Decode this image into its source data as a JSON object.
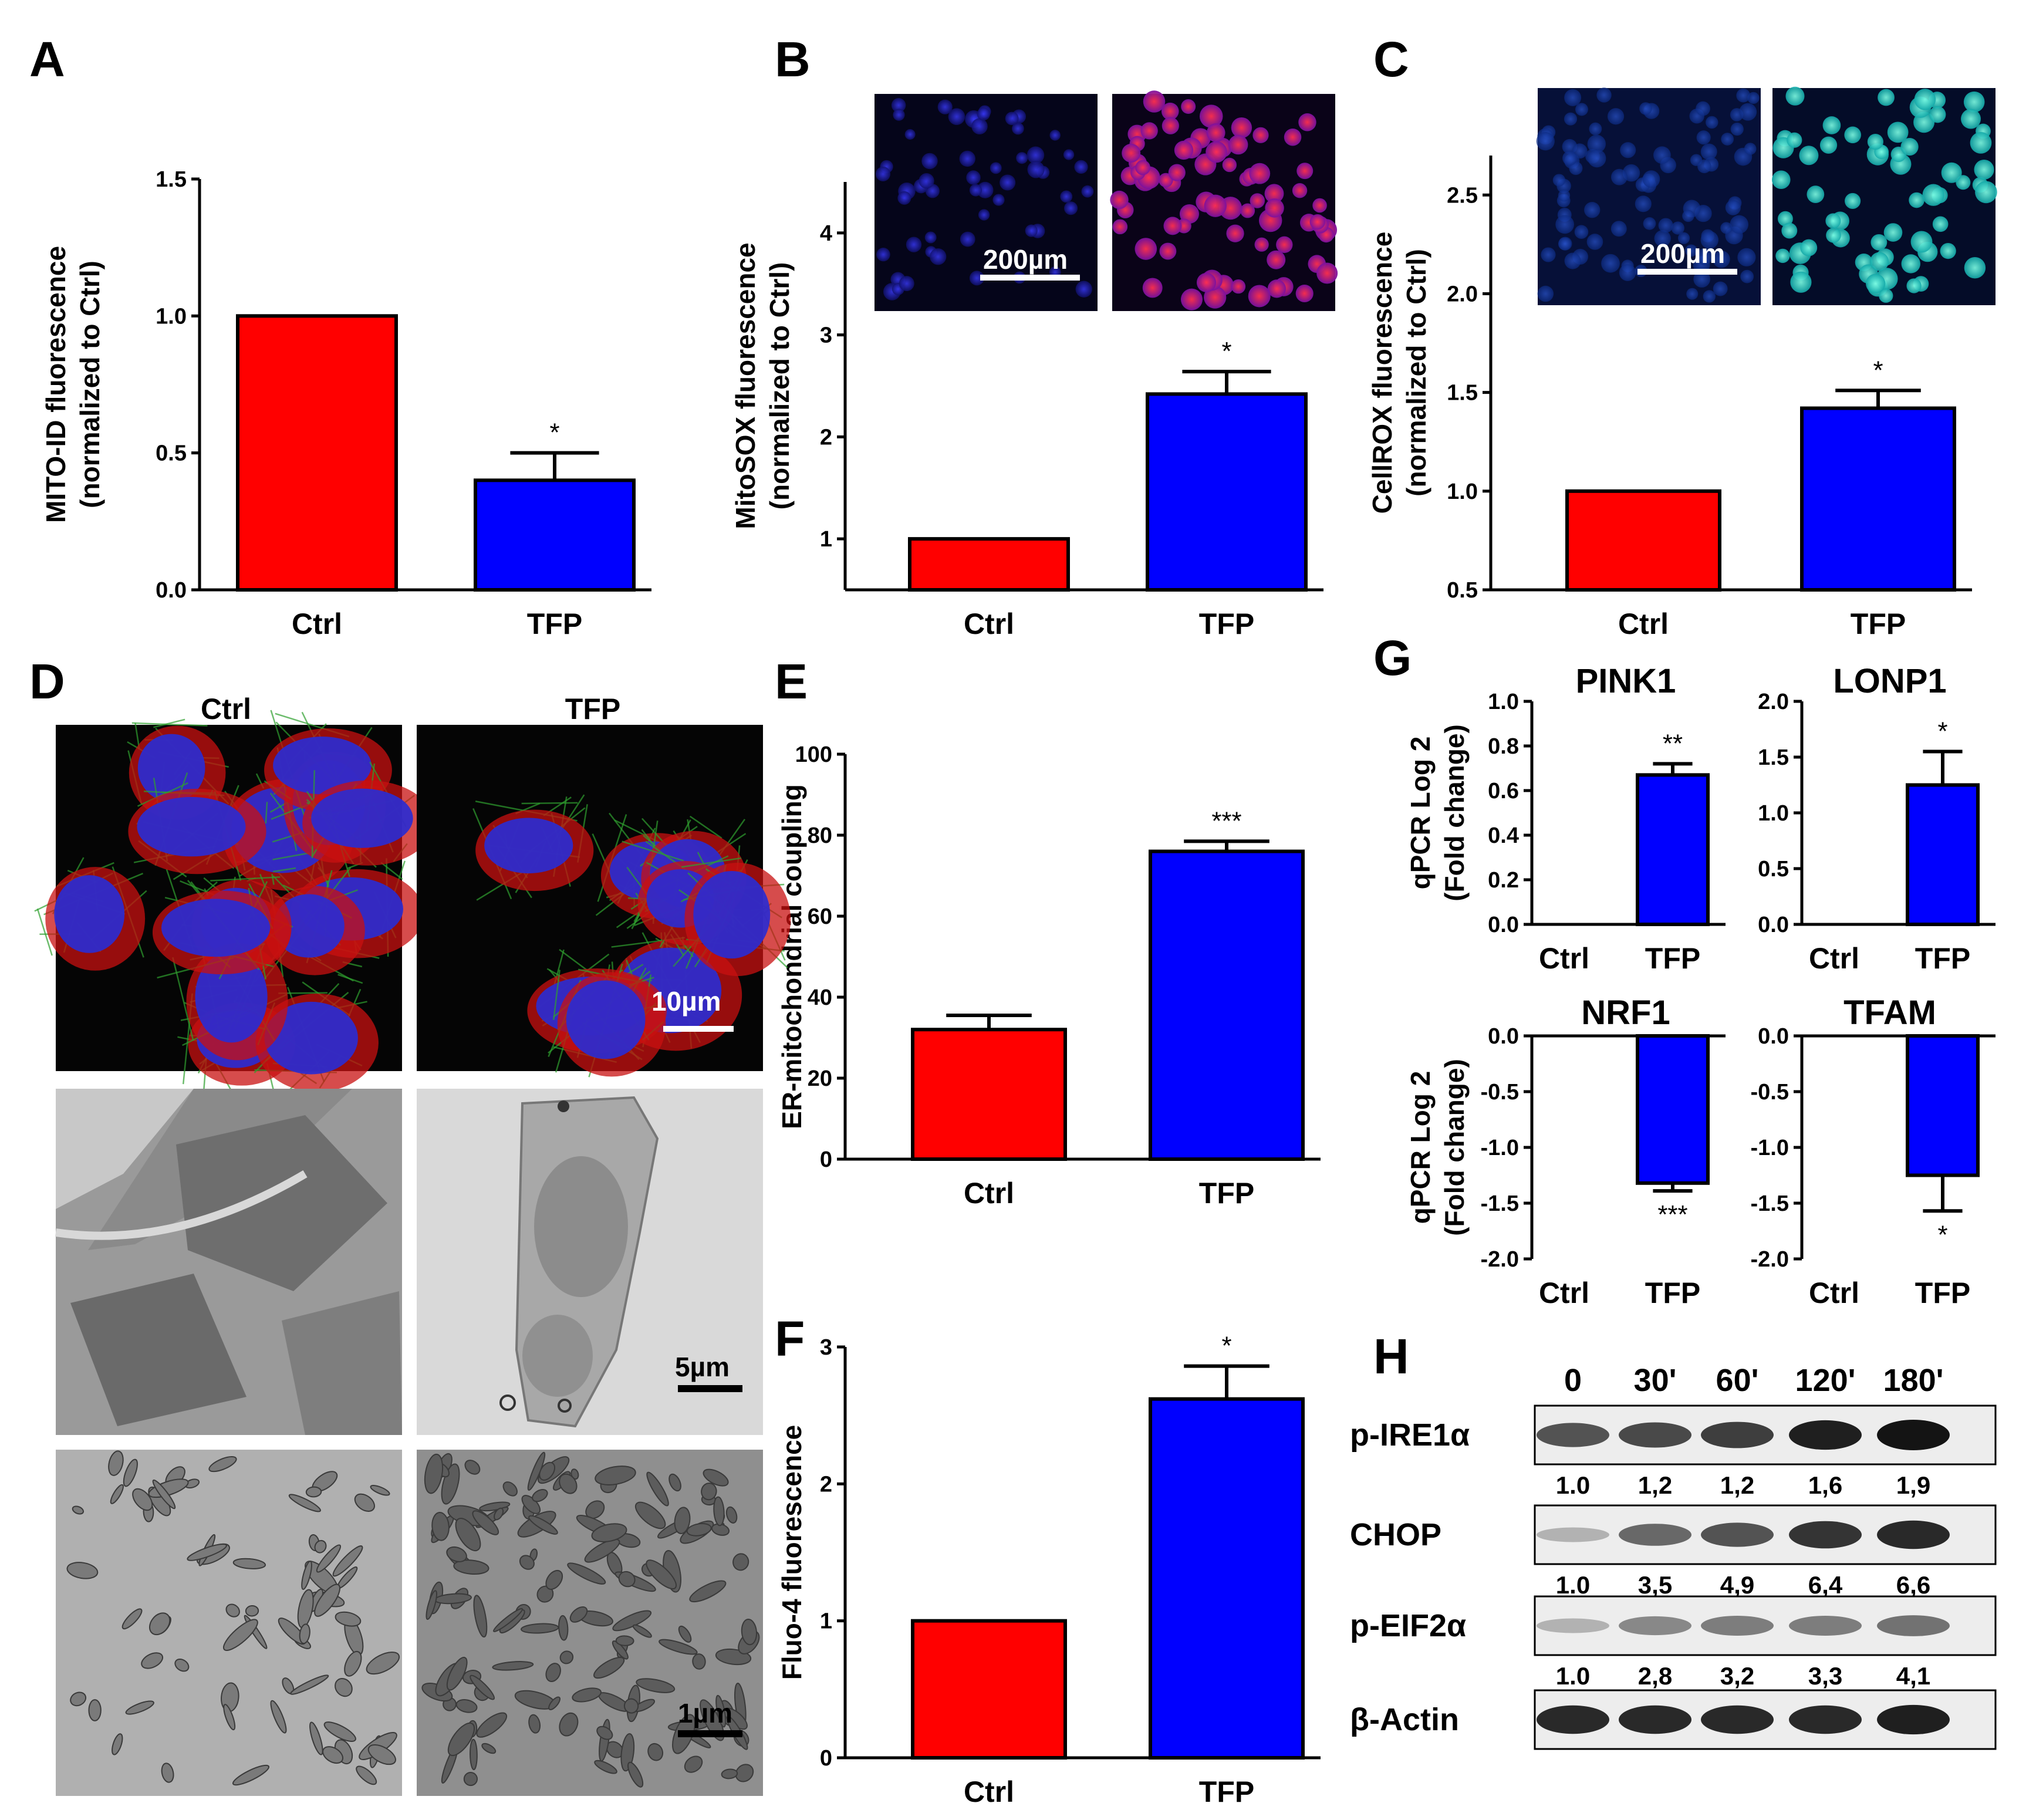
{
  "panels": {
    "A": "A",
    "B": "B",
    "C": "C",
    "D": "D",
    "E": "E",
    "F": "F",
    "G": "G",
    "H": "H"
  },
  "colors": {
    "ctrl": "#ff0000",
    "tfp": "#0000ff",
    "outline": "#000000"
  },
  "chart_data": [
    {
      "panel": "A",
      "type": "bar",
      "categories": [
        "Ctrl",
        "TFP"
      ],
      "values": [
        1.0,
        0.4
      ],
      "errors": [
        0,
        0.1
      ],
      "significance": [
        "",
        "*"
      ],
      "ylabel_lines": [
        "MITO-ID fluorescence",
        "(normalized to Ctrl)"
      ],
      "ylim": [
        0,
        1.5
      ],
      "yticks": [
        "0.0",
        "0.5",
        "1.0",
        "1.5"
      ]
    },
    {
      "panel": "B",
      "type": "bar",
      "categories": [
        "Ctrl",
        "TFP"
      ],
      "values": [
        1.0,
        2.42
      ],
      "errors": [
        0,
        0.22
      ],
      "significance": [
        "",
        "*"
      ],
      "ylabel_lines": [
        "MitoSOX fluorescence",
        "(normalized to Ctrl)"
      ],
      "ylim": [
        0.5,
        4.5
      ],
      "yticks": [
        "1",
        "2",
        "3",
        "4"
      ],
      "scale_bar": "200µm"
    },
    {
      "panel": "C",
      "type": "bar",
      "categories": [
        "Ctrl",
        "TFP"
      ],
      "values": [
        1.0,
        1.42
      ],
      "errors": [
        0,
        0.09
      ],
      "significance": [
        "",
        "*"
      ],
      "ylabel_lines": [
        "CellROX fluorescence",
        "(normalized to Ctrl)"
      ],
      "ylim": [
        0.5,
        2.7
      ],
      "yticks": [
        "0.5",
        "1.0",
        "1.5",
        "2.0",
        "2.5"
      ],
      "scale_bar": "200µm"
    },
    {
      "panel": "E",
      "type": "bar",
      "categories": [
        "Ctrl",
        "TFP"
      ],
      "values": [
        32,
        76
      ],
      "errors": [
        3.5,
        2.5
      ],
      "significance": [
        "",
        "***"
      ],
      "ylabel_lines": [
        "ER-mitochondrial coupling"
      ],
      "ylim": [
        0,
        100
      ],
      "yticks": [
        "0",
        "20",
        "40",
        "60",
        "80",
        "100"
      ]
    },
    {
      "panel": "F",
      "type": "bar",
      "categories": [
        "Ctrl",
        "TFP"
      ],
      "values": [
        1.0,
        2.62
      ],
      "errors": [
        0,
        0.24
      ],
      "significance": [
        "",
        "*"
      ],
      "ylabel_lines": [
        "Fluo-4 fluorescence"
      ],
      "ylim": [
        0,
        3
      ],
      "yticks": [
        "0",
        "1",
        "2",
        "3"
      ]
    },
    {
      "panel": "G",
      "type": "bar",
      "title": "PINK1",
      "categories": [
        "Ctrl",
        "TFP"
      ],
      "values": [
        0,
        0.67
      ],
      "errors": [
        0,
        0.05
      ],
      "significance": [
        "",
        "**"
      ],
      "ylabel_lines": [
        "qPCR Log 2",
        "(Fold change)"
      ],
      "ylim": [
        0,
        1.0
      ],
      "yticks": [
        "0.0",
        "0.2",
        "0.4",
        "0.6",
        "0.8",
        "1.0"
      ]
    },
    {
      "panel": "G",
      "type": "bar",
      "title": "LONP1",
      "categories": [
        "Ctrl",
        "TFP"
      ],
      "values": [
        0,
        1.25
      ],
      "errors": [
        0,
        0.3
      ],
      "significance": [
        "",
        "*"
      ],
      "ylim": [
        0,
        2.0
      ],
      "yticks": [
        "0.0",
        "0.5",
        "1.0",
        "1.5",
        "2.0"
      ]
    },
    {
      "panel": "G",
      "type": "bar",
      "title": "NRF1",
      "categories": [
        "Ctrl",
        "TFP"
      ],
      "values": [
        0,
        -1.32
      ],
      "errors": [
        0,
        0.07
      ],
      "significance": [
        "",
        "***"
      ],
      "ylabel_lines": [
        "qPCR Log 2",
        "(Fold change)"
      ],
      "ylim": [
        -2.0,
        0
      ],
      "yticks": [
        "0.0",
        "-0.5",
        "-1.0",
        "-1.5",
        "-2.0"
      ]
    },
    {
      "panel": "G",
      "type": "bar",
      "title": "TFAM",
      "categories": [
        "Ctrl",
        "TFP"
      ],
      "values": [
        0,
        -1.25
      ],
      "errors": [
        0,
        0.32
      ],
      "significance": [
        "",
        "*"
      ],
      "ylim": [
        -2.0,
        0
      ],
      "yticks": [
        "0.0",
        "-0.5",
        "-1.0",
        "-1.5",
        "-2.0"
      ]
    }
  ],
  "panel_d": {
    "col_labels": [
      "Ctrl",
      "TFP"
    ],
    "scale_bars": [
      "10µm",
      "5µm",
      "1µm"
    ]
  },
  "western": {
    "timepoints": [
      "0",
      "30'",
      "60'",
      "120'",
      "180'"
    ],
    "rows": [
      {
        "label": "p-IRE1α",
        "quant": [
          "1.0",
          "1,2",
          "1,2",
          "1,6",
          "1,9"
        ],
        "intensity": [
          0.7,
          0.75,
          0.8,
          0.95,
          1.0
        ]
      },
      {
        "label": "CHOP",
        "quant": [
          "1.0",
          "3,5",
          "4,9",
          "6,4",
          "6,6"
        ],
        "intensity": [
          0.25,
          0.6,
          0.7,
          0.85,
          0.9
        ]
      },
      {
        "label": "p-EIF2α",
        "quant": [
          "1.0",
          "2,8",
          "3,2",
          "3,3",
          "4,1"
        ],
        "intensity": [
          0.25,
          0.45,
          0.5,
          0.5,
          0.55
        ]
      },
      {
        "label": "β-Actin",
        "quant": [],
        "intensity": [
          0.9,
          0.9,
          0.9,
          0.9,
          0.95
        ]
      }
    ]
  }
}
